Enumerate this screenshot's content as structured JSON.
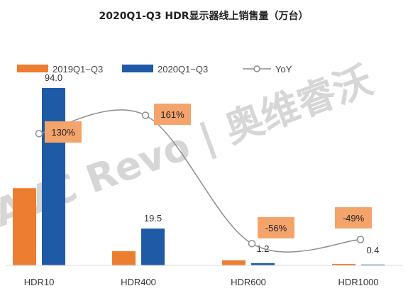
{
  "chart_data": {
    "type": "bar",
    "title": "2020Q1-Q3 HDR显示器线上销售量（万台）",
    "categories": [
      "HDR10",
      "HDR400",
      "HDR600",
      "HDR1000"
    ],
    "series": [
      {
        "name": "2019Q1~Q3",
        "color": "#ed7d31",
        "values": [
          40.9,
          7.5,
          2.7,
          0.8
        ]
      },
      {
        "name": "2020Q1~Q3",
        "color": "#1f5aa6",
        "values": [
          94.0,
          19.5,
          1.2,
          0.4
        ]
      }
    ],
    "value_labels": [
      "94.0",
      "19.5",
      "1.2",
      "0.4"
    ],
    "yoy": {
      "name": "YoY",
      "color": "#8c8c8c",
      "values": [
        130,
        161,
        -56,
        -49
      ],
      "labels": [
        "130%",
        "161%",
        "-56%",
        "-49%"
      ],
      "label_color": "#f4a46b"
    },
    "ylim": [
      0,
      100
    ],
    "legend_position": "top-left",
    "grid": false
  },
  "watermark": "AVC Revo | 奥维睿沃"
}
